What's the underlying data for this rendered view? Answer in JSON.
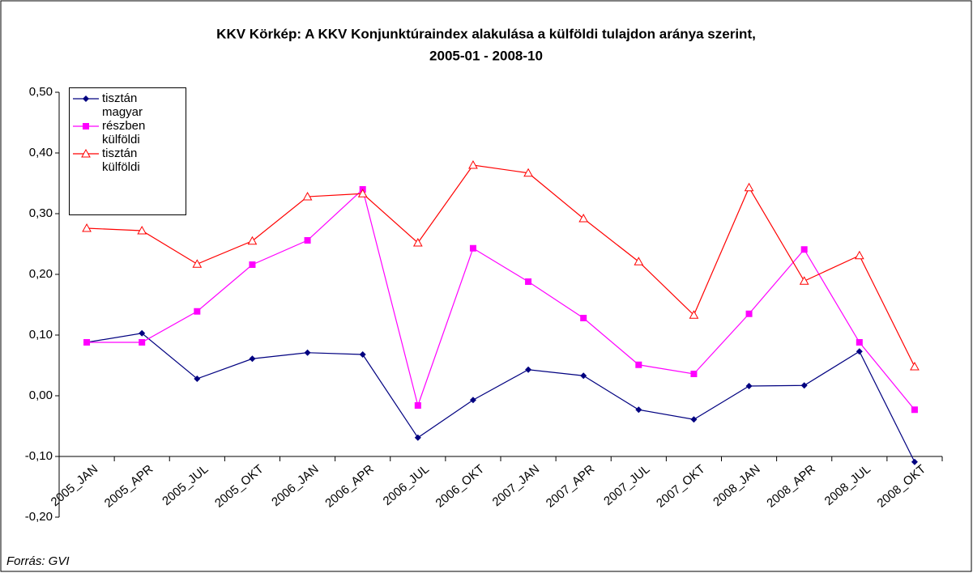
{
  "chart_data": {
    "type": "line",
    "title": "KKV Körkép: A KKV Konjunktúraindex alakulása a külföldi tulajdon aránya szerint,",
    "subtitle": "2005-01 - 2008-10",
    "source": "Forrás: GVI",
    "categories": [
      "2005_JAN",
      "2005_APR",
      "2005_JUL",
      "2005_OKT",
      "2006_JAN",
      "2006_APR",
      "2006_JUL",
      "2006_OKT",
      "2007_JAN",
      "2007_APR",
      "2007_JUL",
      "2007_OKT",
      "2008_JAN",
      "2008_APR",
      "2008_JUL",
      "2008_OKT"
    ],
    "series": [
      {
        "name": "tisztán magyar",
        "color": "#000080",
        "marker": "diamond",
        "values": [
          0.088,
          0.103,
          0.028,
          0.061,
          0.071,
          0.068,
          -0.069,
          -0.007,
          0.043,
          0.033,
          -0.023,
          -0.039,
          0.016,
          0.017,
          0.073,
          -0.109
        ]
      },
      {
        "name": "részben külföldi",
        "color": "#ff00ff",
        "marker": "square",
        "values": [
          0.088,
          0.088,
          0.139,
          0.216,
          0.256,
          0.34,
          -0.016,
          0.243,
          0.188,
          0.128,
          0.051,
          0.036,
          0.135,
          0.241,
          0.088,
          -0.023
        ]
      },
      {
        "name": "tisztán külföldi",
        "color": "#ff0000",
        "marker": "triangle",
        "values": [
          0.276,
          0.272,
          0.217,
          0.255,
          0.328,
          0.333,
          0.252,
          0.38,
          0.367,
          0.292,
          0.221,
          0.133,
          0.343,
          0.189,
          0.231,
          0.048
        ]
      }
    ],
    "ylim": [
      -0.2,
      0.5
    ],
    "yticks": [
      {
        "value": -0.2,
        "label": "-0,20"
      },
      {
        "value": -0.1,
        "label": "-0,10"
      },
      {
        "value": 0,
        "label": "0,00"
      },
      {
        "value": 0.1,
        "label": "0,10"
      },
      {
        "value": 0.2,
        "label": "0,20"
      },
      {
        "value": 0.3,
        "label": "0,30"
      },
      {
        "value": 0.4,
        "label": "0,40"
      },
      {
        "value": 0.5,
        "label": "0,50"
      }
    ],
    "x_axis_crosses": -0.1,
    "grid": false,
    "legend": "top-left"
  }
}
